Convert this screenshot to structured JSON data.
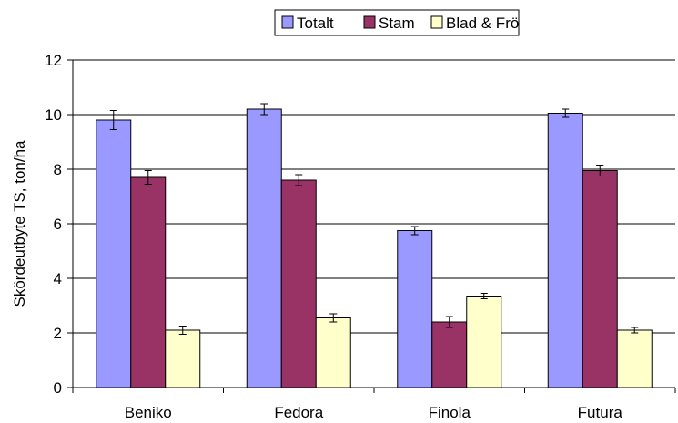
{
  "chart_data": {
    "type": "bar",
    "title": "",
    "xlabel": "",
    "ylabel": "Skördeutbyte TS, ton/ha",
    "ylim": [
      0,
      12
    ],
    "yticks": [
      0,
      2,
      4,
      6,
      8,
      10,
      12
    ],
    "grid": true,
    "legend_position": "top",
    "categories": [
      "Beniko",
      "Fedora",
      "Finola",
      "Futura"
    ],
    "series": [
      {
        "name": "Totalt",
        "color": "#9999ff",
        "values": [
          9.8,
          10.2,
          5.75,
          10.05
        ],
        "errors": [
          0.35,
          0.2,
          0.15,
          0.15
        ]
      },
      {
        "name": "Stam",
        "color": "#993366",
        "values": [
          7.7,
          7.6,
          2.4,
          7.95
        ],
        "errors": [
          0.25,
          0.2,
          0.2,
          0.2
        ]
      },
      {
        "name": "Blad & Frö",
        "color": "#ffffcc",
        "values": [
          2.1,
          2.55,
          3.35,
          2.1
        ],
        "errors": [
          0.15,
          0.15,
          0.1,
          0.1
        ]
      }
    ]
  }
}
